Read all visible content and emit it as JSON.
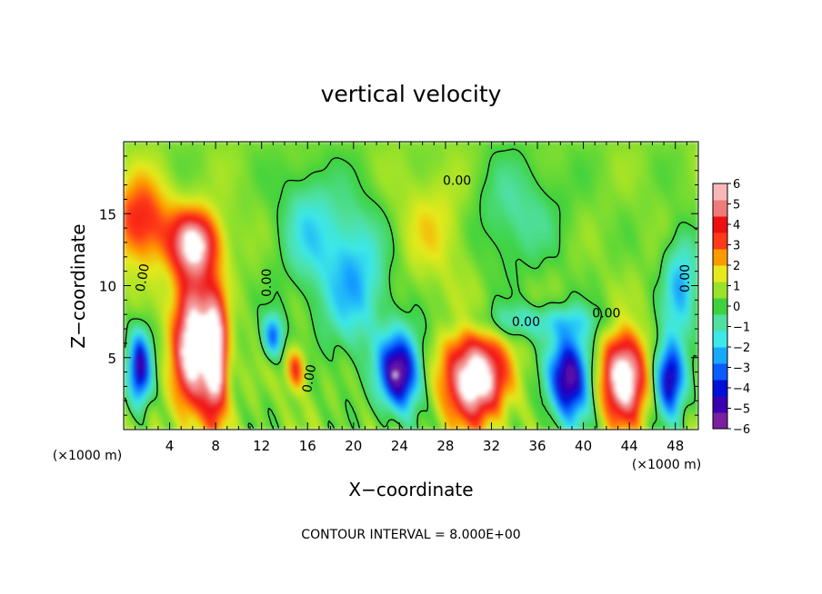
{
  "chart_data": {
    "type": "heatmap",
    "title": "vertical velocity",
    "xlabel": "X−coordinate",
    "ylabel": "Z−coordinate",
    "x_unit_left": "(×1000 m)",
    "x_unit_right": "(×1000 m)",
    "xlim": [
      0,
      50
    ],
    "ylim": [
      0,
      20
    ],
    "x_ticks": [
      4,
      8,
      12,
      16,
      20,
      24,
      28,
      32,
      36,
      40,
      44,
      48
    ],
    "y_ticks": [
      5,
      10,
      15
    ],
    "x_tick_labels": [
      "4",
      "8",
      "12",
      "16",
      "20",
      "24",
      "28",
      "32",
      "36",
      "40",
      "44",
      "48"
    ],
    "y_tick_labels": [
      "5",
      "10",
      "15"
    ],
    "colorbar": {
      "min": -6,
      "max": 6,
      "ticks": [
        6,
        5,
        4,
        3,
        2,
        1,
        0,
        -1,
        -2,
        -3,
        -4,
        -5,
        -6
      ],
      "tick_labels": [
        "6",
        "5",
        "4",
        "3",
        "2",
        "1",
        "0",
        "−1",
        "−2",
        "−3",
        "−4",
        "−5",
        "−6"
      ],
      "colors": [
        "#7a1fa0",
        "#3a00b0",
        "#0010d8",
        "#0a5cff",
        "#19a8ff",
        "#3ce8e8",
        "#50e0a0",
        "#3ed23e",
        "#9ae22a",
        "#e6ea1c",
        "#ff9a00",
        "#ff3a1a",
        "#ee1010",
        "#f07a7a",
        "#f8b8b8"
      ]
    },
    "contour_labels": [
      "0.00",
      "0.00",
      "0.00",
      "0.00",
      "0.00",
      "0.00",
      "0.00"
    ],
    "footer": "CONTOUR INTERVAL =  8.000E+00",
    "cells": [
      {
        "x": 1.4,
        "z": 4.3,
        "w": -5.5,
        "r": 1.0,
        "h": 2.6
      },
      {
        "x": 6.0,
        "z": 6.2,
        "w": 6.5,
        "r": 1.7,
        "h": 5.0
      },
      {
        "x": 8.0,
        "z": 5.0,
        "w": 6.5,
        "r": 1.0,
        "h": 4.2
      },
      {
        "x": 6.2,
        "z": 13.0,
        "w": 5.0,
        "r": 2.2,
        "h": 2.2
      },
      {
        "x": 1.5,
        "z": 14.5,
        "w": 3.5,
        "r": 2.5,
        "h": 3.0
      },
      {
        "x": 13.0,
        "z": 6.5,
        "w": -4.0,
        "r": 0.9,
        "h": 1.5
      },
      {
        "x": 15.0,
        "z": 4.2,
        "w": 3.5,
        "r": 0.8,
        "h": 1.4
      },
      {
        "x": 20.0,
        "z": 10.5,
        "w": -3.0,
        "r": 3.0,
        "h": 5.0
      },
      {
        "x": 24.0,
        "z": 4.0,
        "w": -6.5,
        "r": 1.8,
        "h": 2.7
      },
      {
        "x": 30.5,
        "z": 3.6,
        "w": 7.0,
        "r": 2.6,
        "h": 3.0
      },
      {
        "x": 38.8,
        "z": 3.6,
        "w": -6.5,
        "r": 1.8,
        "h": 3.0
      },
      {
        "x": 43.5,
        "z": 3.6,
        "w": 7.0,
        "r": 1.9,
        "h": 3.0
      },
      {
        "x": 47.5,
        "z": 3.6,
        "w": -6.0,
        "r": 1.3,
        "h": 2.6
      },
      {
        "x": 48.5,
        "z": 10.0,
        "w": -3.0,
        "r": 1.5,
        "h": 3.5
      },
      {
        "x": 36.0,
        "z": 7.5,
        "w": -2.0,
        "r": 6.0,
        "h": 1.2
      },
      {
        "x": 27.0,
        "z": 14.0,
        "w": 1.2,
        "r": 3.5,
        "h": 4.0
      },
      {
        "x": 34.0,
        "z": 15.0,
        "w": -1.5,
        "r": 4.0,
        "h": 4.0
      },
      {
        "x": 16.0,
        "z": 14.0,
        "w": -2.0,
        "r": 2.5,
        "h": 4.0
      }
    ]
  }
}
